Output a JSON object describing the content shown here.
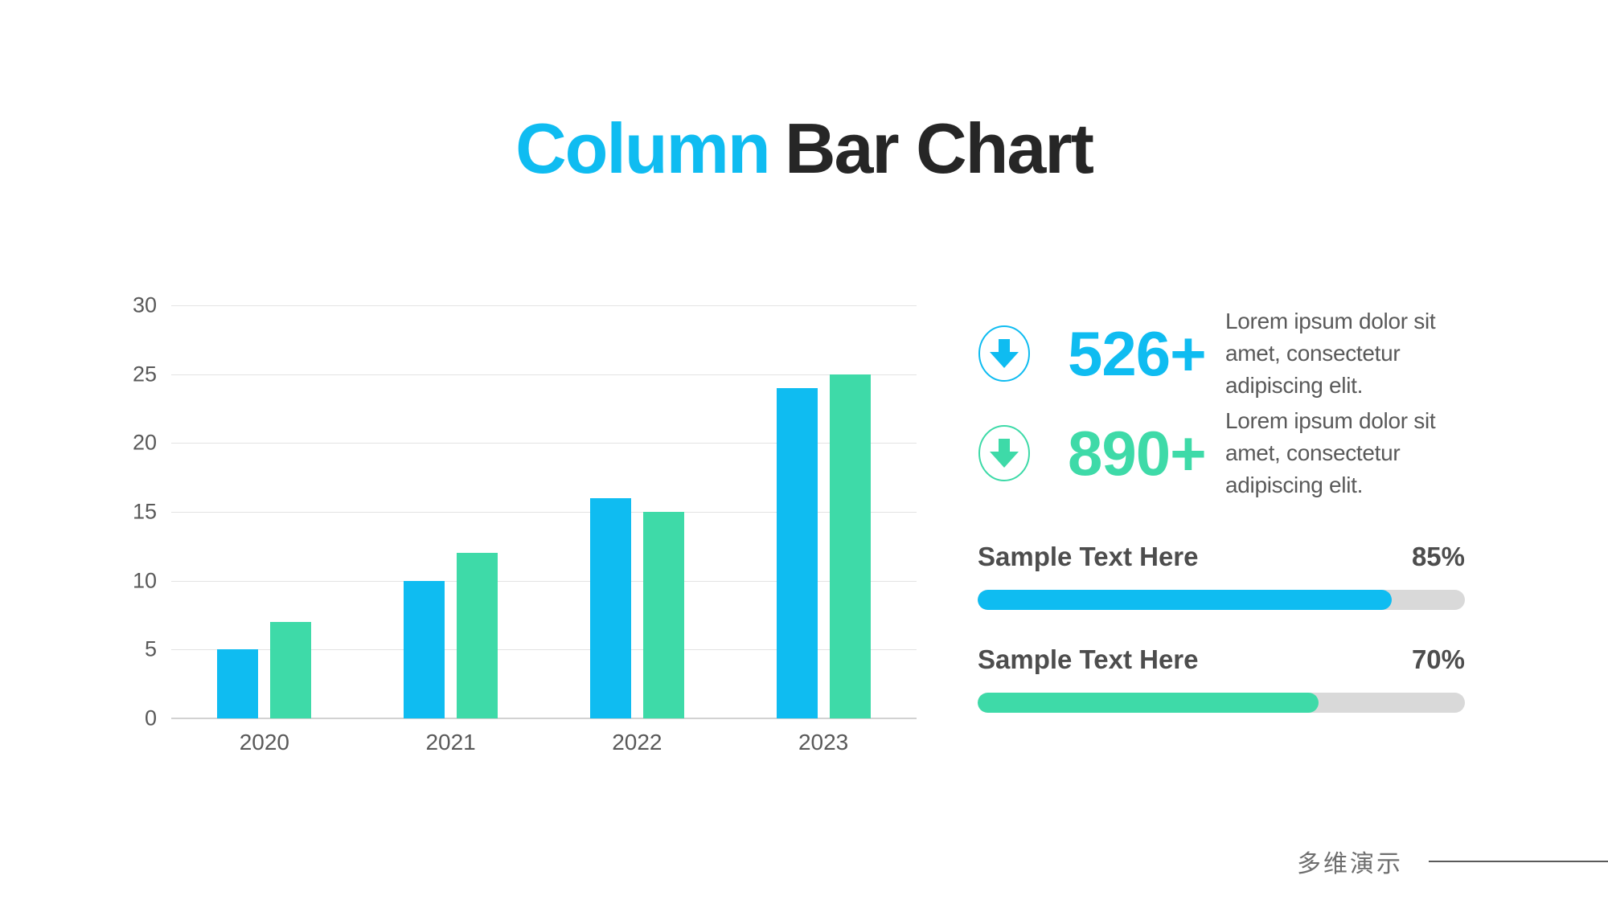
{
  "title": {
    "highlight": "Column",
    "rest": "Bar Chart"
  },
  "colors": {
    "accent_blue": "#0fbcf1",
    "accent_green": "#3edaa8",
    "title_dark": "#262626",
    "body_gray": "#595959",
    "label_dark": "#4d4d4d",
    "track_gray": "#d9d9d9"
  },
  "chart_data": {
    "type": "bar",
    "title": "",
    "xlabel": "",
    "ylabel": "",
    "categories": [
      "2020",
      "2021",
      "2022",
      "2023"
    ],
    "series": [
      {
        "name": "blue-series",
        "color": "#0fbcf1",
        "values": [
          5,
          10,
          16,
          24
        ]
      },
      {
        "name": "green-series",
        "color": "#3edaa8",
        "values": [
          7,
          12,
          15,
          25
        ]
      }
    ],
    "ylim": [
      0,
      30
    ],
    "yticks": [
      0,
      5,
      10,
      15,
      20,
      25,
      30
    ],
    "grid": true,
    "legend": "none"
  },
  "stats": [
    {
      "value": "526+",
      "color": "#0fbcf1",
      "icon": "down-arrow-circle",
      "lines": [
        "Lorem ipsum dolor sit",
        "amet, consectetur",
        "adipiscing elit."
      ]
    },
    {
      "value": "890+",
      "color": "#3edaa8",
      "icon": "down-arrow-circle",
      "lines": [
        "Lorem ipsum dolor sit",
        "amet, consectetur",
        "adipiscing elit."
      ]
    }
  ],
  "progress_bars": [
    {
      "label": "Sample Text Here",
      "percent": 85,
      "percent_label": "85%",
      "color": "#0fbcf1"
    },
    {
      "label": "Sample Text Here",
      "percent": 70,
      "percent_label": "70%",
      "color": "#3edaa8"
    }
  ],
  "watermark": {
    "text": "多维演示"
  }
}
